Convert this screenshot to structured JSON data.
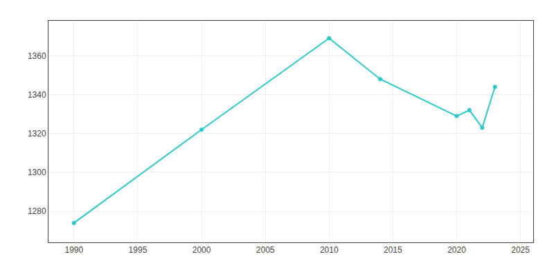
{
  "chart_data": {
    "type": "line",
    "x": [
      1990,
      2000,
      2010,
      2014,
      2020,
      2021,
      2022,
      2023
    ],
    "values": [
      1274,
      1322,
      1369,
      1348,
      1329,
      1332,
      1323,
      1344
    ],
    "color": "#2DC8C8",
    "marker": "circle",
    "xlim": [
      1988,
      2026
    ],
    "ylim": [
      1264,
      1378
    ],
    "xticks": [
      1990,
      1995,
      2000,
      2005,
      2010,
      2015,
      2020,
      2025
    ],
    "yticks": [
      1280,
      1300,
      1320,
      1340,
      1360
    ],
    "grid": true
  }
}
